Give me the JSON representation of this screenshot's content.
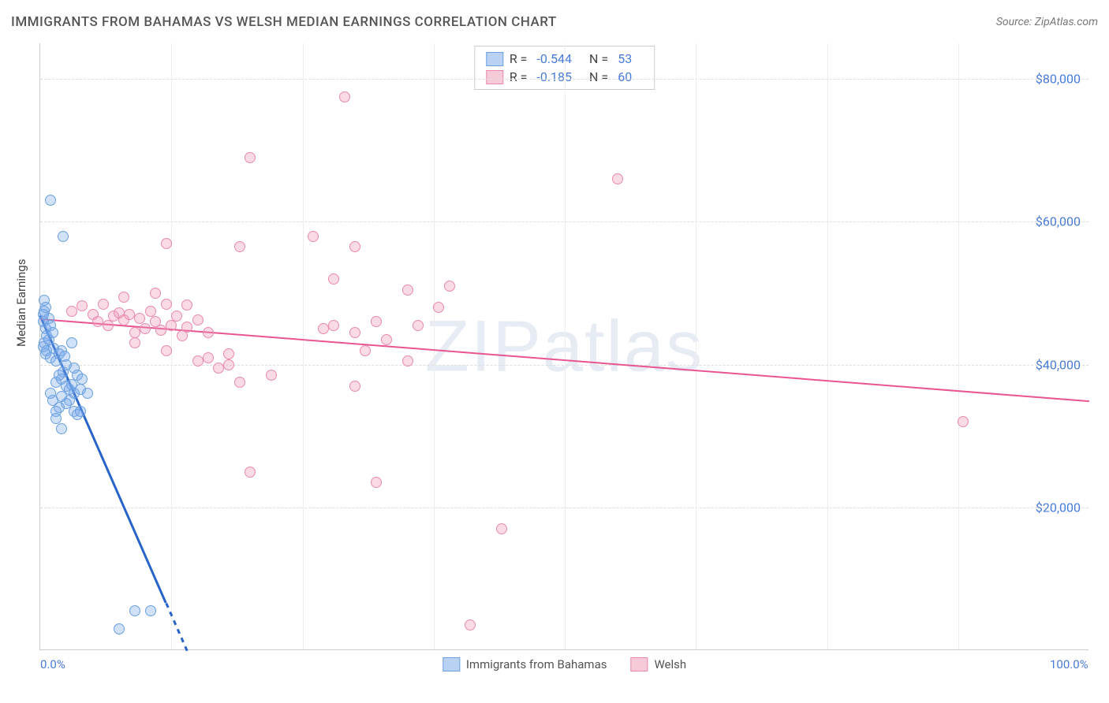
{
  "title": "IMMIGRANTS FROM BAHAMAS VS WELSH MEDIAN EARNINGS CORRELATION CHART",
  "source_label": "Source: ZipAtlas.com",
  "watermark": "ZIPatlas",
  "y_axis_title": "Median Earnings",
  "chart": {
    "type": "scatter",
    "background_color": "#ffffff",
    "grid_color": "#dddddd",
    "axis_color": "#cccccc",
    "xlim": [
      0,
      100
    ],
    "ylim": [
      0,
      85000
    ],
    "x_ticks": [
      0,
      100
    ],
    "x_tick_labels": [
      "0.0%",
      "100.0%"
    ],
    "x_minor_gridlines": [
      12.5,
      25,
      37.5,
      50,
      62.5,
      75,
      87.5
    ],
    "y_ticks": [
      20000,
      40000,
      60000,
      80000
    ],
    "y_tick_labels": [
      "$20,000",
      "$40,000",
      "$60,000",
      "$80,000"
    ],
    "tick_label_color": "#4a7bd8",
    "marker_radius": 7,
    "marker_stroke_width": 1
  },
  "series": [
    {
      "name": "Immigrants from Bahamas",
      "fill_color": "rgba(120,170,235,0.35)",
      "stroke_color": "#6aa0e0",
      "legend_fill": "#b9d2f4",
      "legend_stroke": "#6aa0e0",
      "correlation_R": "-0.544",
      "N": "53",
      "trend_line": {
        "x1": 0,
        "y1": 47000,
        "x2": 14,
        "y2": 0,
        "color": "#2864c8",
        "width": 2.5,
        "dashed_beyond_x": 12
      },
      "points": [
        [
          0.3,
          46000
        ],
        [
          0.4,
          47500
        ],
        [
          0.5,
          45000
        ],
        [
          0.6,
          44000
        ],
        [
          0.4,
          43000
        ],
        [
          0.8,
          46500
        ],
        [
          0.3,
          42500
        ],
        [
          0.5,
          41500
        ],
        [
          0.6,
          42000
        ],
        [
          0.4,
          49000
        ],
        [
          0.5,
          48000
        ],
        [
          0.3,
          47000
        ],
        [
          0.8,
          43500
        ],
        [
          1.0,
          45500
        ],
        [
          1.2,
          44500
        ],
        [
          1.0,
          41000
        ],
        [
          1.3,
          42300
        ],
        [
          1.5,
          40500
        ],
        [
          1.8,
          41500
        ],
        [
          2.0,
          42000
        ],
        [
          2.3,
          41200
        ],
        [
          2.5,
          40000
        ],
        [
          2.2,
          39000
        ],
        [
          2.0,
          38000
        ],
        [
          1.8,
          38500
        ],
        [
          1.5,
          37500
        ],
        [
          2.5,
          37000
        ],
        [
          2.8,
          36500
        ],
        [
          3.0,
          37200
        ],
        [
          3.2,
          36000
        ],
        [
          2.8,
          35000
        ],
        [
          2.5,
          34500
        ],
        [
          2.0,
          35500
        ],
        [
          1.8,
          34000
        ],
        [
          1.5,
          33500
        ],
        [
          1.2,
          35000
        ],
        [
          1.0,
          36000
        ],
        [
          3.5,
          38500
        ],
        [
          3.2,
          39500
        ],
        [
          3.8,
          36500
        ],
        [
          4.0,
          38000
        ],
        [
          4.5,
          36000
        ],
        [
          3.2,
          33500
        ],
        [
          3.5,
          33000
        ],
        [
          3.8,
          33500
        ],
        [
          1.5,
          32500
        ],
        [
          2.0,
          31000
        ],
        [
          1.0,
          63000
        ],
        [
          2.2,
          58000
        ],
        [
          9.0,
          5500
        ],
        [
          10.5,
          5500
        ],
        [
          7.5,
          3000
        ],
        [
          3.0,
          43000
        ]
      ]
    },
    {
      "name": "Welsh",
      "fill_color": "rgba(240,150,180,0.35)",
      "stroke_color": "#e88ab0",
      "legend_fill": "#f7cad8",
      "legend_stroke": "#e88ab0",
      "correlation_R": "-0.185",
      "N": "60",
      "trend_line": {
        "x1": 0,
        "y1": 46500,
        "x2": 100,
        "y2": 35000,
        "color": "#e85590",
        "width": 2,
        "dashed_beyond_x": 100
      },
      "points": [
        [
          3,
          47500
        ],
        [
          4,
          48200
        ],
        [
          5,
          47000
        ],
        [
          5.5,
          46000
        ],
        [
          6,
          48500
        ],
        [
          6.5,
          45500
        ],
        [
          7,
          46800
        ],
        [
          7.5,
          47300
        ],
        [
          8,
          46200
        ],
        [
          8.5,
          47000
        ],
        [
          9,
          44500
        ],
        [
          9.5,
          46500
        ],
        [
          10,
          45000
        ],
        [
          10.5,
          47500
        ],
        [
          11,
          46000
        ],
        [
          11.5,
          44800
        ],
        [
          12,
          48500
        ],
        [
          12.5,
          45500
        ],
        [
          13,
          46800
        ],
        [
          13.5,
          44000
        ],
        [
          14,
          45300
        ],
        [
          15,
          46200
        ],
        [
          16,
          44500
        ],
        [
          11,
          50000
        ],
        [
          8,
          49500
        ],
        [
          14,
          48300
        ],
        [
          9,
          43000
        ],
        [
          12,
          42000
        ],
        [
          16,
          41000
        ],
        [
          15,
          40500
        ],
        [
          17,
          39500
        ],
        [
          18,
          41500
        ],
        [
          18,
          40000
        ],
        [
          19,
          37500
        ],
        [
          22,
          38500
        ],
        [
          19,
          56500
        ],
        [
          12,
          57000
        ],
        [
          20,
          69000
        ],
        [
          26,
          58000
        ],
        [
          27,
          45000
        ],
        [
          28,
          45500
        ],
        [
          28,
          52000
        ],
        [
          30,
          56500
        ],
        [
          30,
          37000
        ],
        [
          30,
          44500
        ],
        [
          31,
          42000
        ],
        [
          32,
          46000
        ],
        [
          33,
          43500
        ],
        [
          35,
          50500
        ],
        [
          35,
          40500
        ],
        [
          36,
          45500
        ],
        [
          38,
          48000
        ],
        [
          39,
          51000
        ],
        [
          29,
          77500
        ],
        [
          32,
          23500
        ],
        [
          20,
          25000
        ],
        [
          41,
          3500
        ],
        [
          44,
          17000
        ],
        [
          55,
          66000
        ],
        [
          88,
          32000
        ]
      ]
    }
  ],
  "legend_top_labels": {
    "R": "R =",
    "N": "N ="
  },
  "legend_bottom_items": [
    "Immigrants from Bahamas",
    "Welsh"
  ]
}
